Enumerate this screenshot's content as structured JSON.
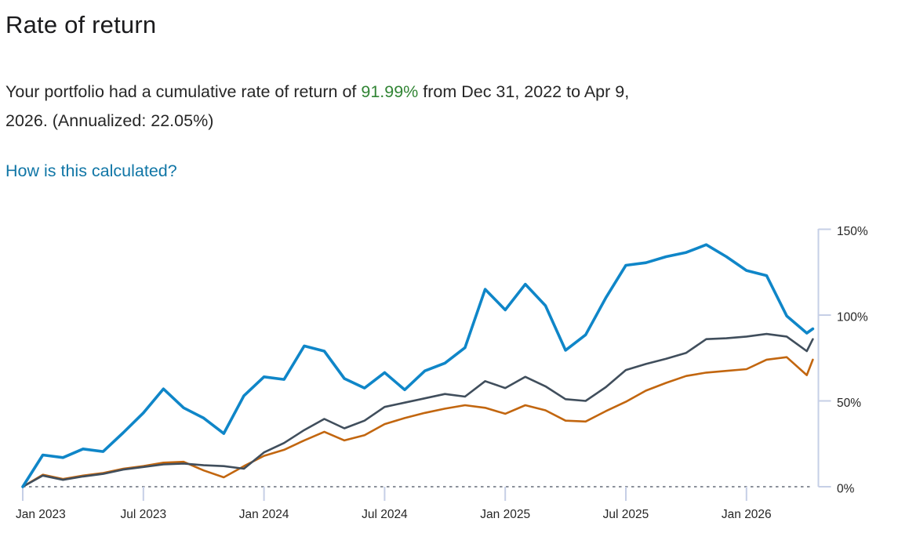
{
  "title": "Rate of return",
  "summary": {
    "line1_before": "Your portfolio had a cumulative rate of return of ",
    "return_value": "91.99%",
    "line1_after": " from Dec 31, 2022 to Apr 9,",
    "line2": "2026. (Annualized: 22.05%)"
  },
  "link_label": "How is this calculated?",
  "colors": {
    "return_value_green": "#328535",
    "link_teal": "#1076a6",
    "text": "#262626",
    "portfolio_blue": "#0f86c8",
    "benchmark_gray": "#404e5c",
    "benchmark_orange": "#c2660f",
    "axis_line": "#c6cfe6",
    "zero_line": "#8b909a"
  },
  "chart_data": {
    "type": "line",
    "title": "Cumulative rate of return",
    "x_axis": {
      "unit": "months since Dec 31, 2022",
      "start_date": "Dec 31, 2022",
      "end_date": "Apr 9, 2026",
      "ticks": [
        {
          "m": 0,
          "label": "Jan 2023"
        },
        {
          "m": 6,
          "label": "Jul 2023"
        },
        {
          "m": 12,
          "label": "Jan 2024"
        },
        {
          "m": 18,
          "label": "Jul 2024"
        },
        {
          "m": 24,
          "label": "Jan 2025"
        },
        {
          "m": 30,
          "label": "Jul 2025"
        },
        {
          "m": 36,
          "label": "Jan 2026"
        }
      ]
    },
    "y_axis": {
      "position": "right",
      "min": 0,
      "max": 150,
      "ticks": [
        {
          "v": 0,
          "label": "0%"
        },
        {
          "v": 50,
          "label": "50%"
        },
        {
          "v": 100,
          "label": "100%"
        },
        {
          "v": 150,
          "label": "150%"
        }
      ]
    },
    "zero_baseline": "dotted",
    "legend": "none",
    "x_months": [
      0,
      1,
      2,
      3,
      4,
      5,
      6,
      7,
      8,
      9,
      10,
      11,
      12,
      13,
      14,
      15,
      16,
      17,
      18,
      19,
      20,
      21,
      22,
      23,
      24,
      25,
      26,
      27,
      28,
      29,
      30,
      31,
      32,
      33,
      34,
      35,
      36,
      37,
      38,
      39,
      39.3
    ],
    "series": [
      {
        "name": "portfolio",
        "color_key": "portfolio_blue",
        "stroke_width": 3.6,
        "final_value_pct": 91.99,
        "values": [
          0,
          18.5,
          17,
          22,
          20.5,
          31.5,
          43,
          57,
          46,
          40,
          31,
          53,
          64,
          62.5,
          82,
          79,
          63,
          57.5,
          66.5,
          56.5,
          67.5,
          72,
          81,
          115,
          103,
          118,
          105.5,
          79.5,
          88.5,
          110,
          129,
          130.5,
          134,
          136.5,
          141,
          134,
          126,
          123,
          99.5,
          89.5,
          92
        ]
      },
      {
        "name": "benchmark-dark-gray",
        "color_key": "benchmark_gray",
        "stroke_width": 2.6,
        "values": [
          0,
          6.5,
          4,
          6,
          7.5,
          10,
          11.5,
          13,
          13.5,
          12.5,
          12,
          10.5,
          20,
          25.5,
          33,
          39.5,
          34,
          38.5,
          46.5,
          49,
          51.5,
          54,
          52.5,
          61.5,
          57.5,
          64,
          58.5,
          51,
          50,
          58,
          68,
          71.5,
          74.5,
          78,
          86,
          86.5,
          87.5,
          89,
          87.5,
          79,
          86
        ]
      },
      {
        "name": "benchmark-orange",
        "color_key": "benchmark_orange",
        "stroke_width": 2.6,
        "values": [
          0,
          7,
          4.5,
          6.5,
          8,
          10.5,
          12,
          14,
          14.5,
          9.5,
          5.5,
          12,
          18,
          21.5,
          27,
          32,
          27,
          30,
          36.5,
          40,
          43,
          45.5,
          47.5,
          46,
          42.5,
          47.5,
          44.5,
          38.5,
          38,
          44,
          49.5,
          56,
          60.5,
          64.5,
          66.5,
          67.5,
          68.5,
          74,
          75.5,
          65,
          74
        ]
      }
    ]
  }
}
